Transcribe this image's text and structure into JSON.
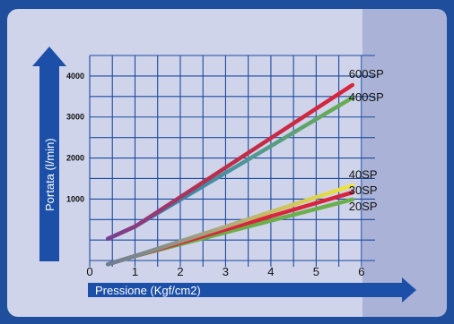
{
  "colors": {
    "frame": "#1e4e9c",
    "panel": "#cfd4ea",
    "panel_right": "#aab3d7",
    "grid": "#1c4a9e",
    "axis_arrow": "#1c4fa8",
    "axis_title_text": "#ffffff"
  },
  "chart_data": {
    "type": "line",
    "title": "",
    "xlabel": "Pressione (Kgf/cm2)",
    "ylabel": "Portata (l/min)",
    "xlim": [
      0,
      6.3
    ],
    "ylim": [
      -650,
      4500
    ],
    "x_ticks": [
      0,
      1,
      2,
      3,
      4,
      5,
      6
    ],
    "y_ticks": [
      1000,
      2000,
      3000,
      4000
    ],
    "grid": true,
    "legend": "inline-right",
    "series": [
      {
        "name": "600SP",
        "color": "#d9253b",
        "x": [
          0.4,
          1.0,
          5.8
        ],
        "y": [
          30,
          330,
          3780
        ]
      },
      {
        "name": "400SP",
        "color": "#6bae4a",
        "x": [
          0.4,
          1.0,
          5.8
        ],
        "y": [
          30,
          330,
          3470
        ]
      },
      {
        "name": "40SP",
        "color": "#f0e63a",
        "x": [
          0.4,
          1.0,
          5.8
        ],
        "y": [
          -590,
          -390,
          1330
        ]
      },
      {
        "name": "30SP",
        "color": "#d9253b",
        "x": [
          0.4,
          1.0,
          5.8
        ],
        "y": [
          -590,
          -390,
          1160
        ]
      },
      {
        "name": "20SP",
        "color": "#6bae4a",
        "x": [
          0.4,
          1.0,
          5.8
        ],
        "y": [
          -590,
          -390,
          990
        ]
      }
    ]
  }
}
